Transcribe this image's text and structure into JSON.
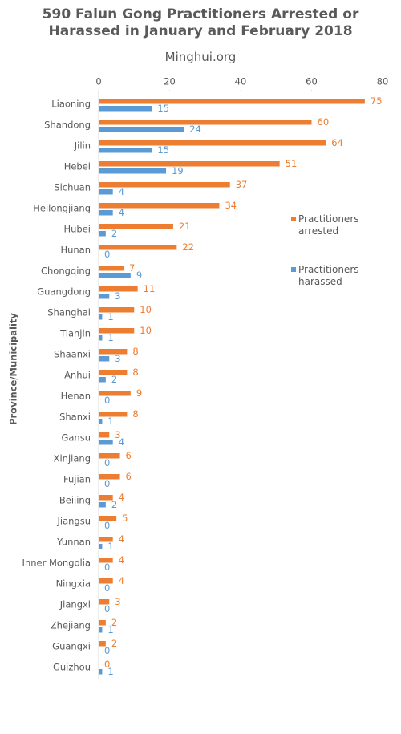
{
  "chart_data": {
    "type": "bar",
    "orientation": "horizontal",
    "title": "590 Falun Gong Practitioners Arrested or Harassed in January and February 2018",
    "subtitle": "Minghui.org",
    "y_label": "Province/Municipality",
    "categories": [
      "Liaoning",
      "Shandong",
      "Jilin",
      "Hebei",
      "Sichuan",
      "Heilongjiang",
      "Hubei",
      "Hunan",
      "Chongqing",
      "Guangdong",
      "Shanghai",
      "Tianjin",
      "Shaanxi",
      "Anhui",
      "Henan",
      "Shanxi",
      "Gansu",
      "Xinjiang",
      "Fujian",
      "Beijing",
      "Jiangsu",
      "Yunnan",
      "Inner Mongolia",
      "Ningxia",
      "Jiangxi",
      "Zhejiang",
      "Guangxi",
      "Guizhou"
    ],
    "series": [
      {
        "name": "Practitioners arrested",
        "color": "#ed7d31",
        "values": [
          75,
          60,
          64,
          51,
          37,
          34,
          21,
          22,
          7,
          11,
          10,
          10,
          8,
          8,
          9,
          8,
          3,
          6,
          6,
          4,
          5,
          4,
          4,
          4,
          3,
          2,
          2,
          0
        ]
      },
      {
        "name": "Practitioners harassed",
        "color": "#5b9bd5",
        "values": [
          15,
          24,
          15,
          19,
          4,
          4,
          2,
          0,
          9,
          3,
          1,
          1,
          3,
          2,
          0,
          1,
          4,
          0,
          0,
          2,
          0,
          1,
          0,
          0,
          0,
          1,
          0,
          1
        ]
      }
    ],
    "xlim": [
      0,
      80
    ],
    "xticks": [
      0,
      20,
      40,
      60,
      80
    ]
  }
}
